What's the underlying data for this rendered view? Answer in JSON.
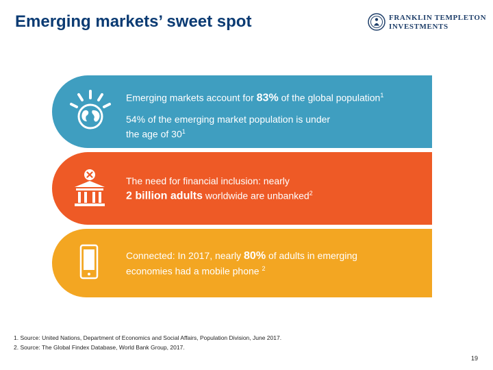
{
  "header": {
    "title": "Emerging markets’ sweet spot",
    "logo_line1": "FRANKLIN TEMPLETON",
    "logo_line2": "INVESTMENTS"
  },
  "bands": [
    {
      "color": "#3f9ec0",
      "icon": "globe-icon",
      "line1_pre": "Emerging markets account for",
      "line1_big": "83%",
      "line1_post": "of the global population",
      "line1_sup": "1",
      "line2a": "54% of the emerging market population is under",
      "line2b": "the age of 30",
      "line2_sup": "1"
    },
    {
      "color": "#ee5a26",
      "icon": "bank-icon",
      "line1": "The need for financial inclusion: nearly",
      "line2_big": "2 billion adults",
      "line2_post": "worldwide are unbanked",
      "line2_sup": "2"
    },
    {
      "color": "#f3a622",
      "icon": "mobile-phone-icon",
      "line1_pre": "Connected: In 2017, nearly",
      "line1_big": "80%",
      "line1_post": "of adults in emerging",
      "line2": "economies had a mobile phone",
      "line2_sup": "2"
    }
  ],
  "footnotes": [
    "1.  Source: United Nations, Department of Economics and Social Affairs, Population Division, June 2017.",
    "2.  Source: The Global Findex Database, World Bank Group, 2017."
  ],
  "page_number": "19"
}
